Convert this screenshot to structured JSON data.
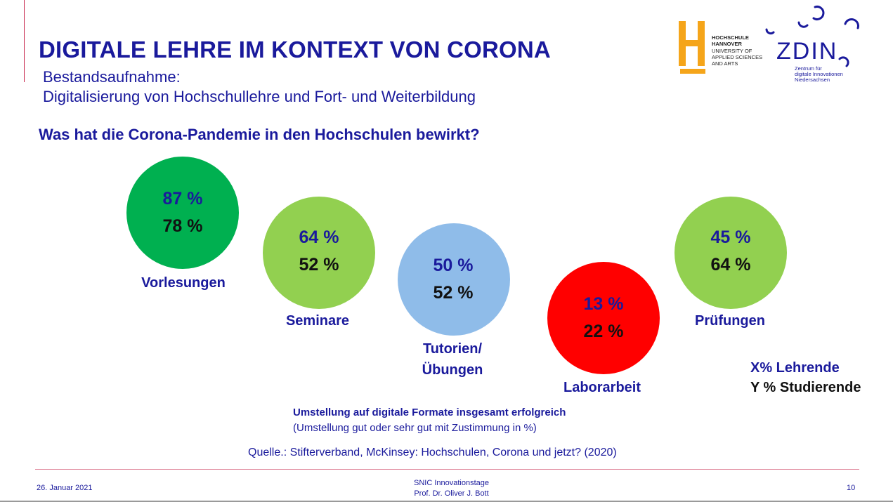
{
  "slide": {
    "title": "DIGITALE LEHRE IM KONTEXT VON CORONA",
    "subtitle_line1": "Bestandsaufnahme:",
    "subtitle_line2": "Digitalisierung von Hochschullehre und Fort- und Weiterbildung",
    "question": "Was hat die Corona-Pandemie in den Hochschulen bewirkt?"
  },
  "logos": {
    "hochschule": {
      "line1": "HOCHSCHULE",
      "line2": "HANNOVER",
      "line3": "UNIVERSITY OF",
      "line4": "APPLIED SCIENCES",
      "line5": "AND ARTS",
      "color": "#f5a51a"
    },
    "zdin": {
      "name": "ZDIN",
      "line1": "Zentrum für",
      "line2": "digitale Innovationen",
      "line3": "Niedersachsen",
      "color": "#1a1a9c"
    }
  },
  "circles": [
    {
      "category": "Vorlesungen",
      "lehrende": "87 %",
      "studierende": "78 %",
      "color": "#00b050"
    },
    {
      "category": "Seminare",
      "lehrende": "64 %",
      "studierende": "52 %",
      "color": "#92d050"
    },
    {
      "category": "Tutorien/",
      "category2": "Übungen",
      "lehrende": "50 %",
      "studierende": "52 %",
      "color": "#8fbce9"
    },
    {
      "category": "Laborarbeit",
      "lehrende": "13 %",
      "studierende": "22 %",
      "color": "#ff0000"
    },
    {
      "category": "Prüfungen",
      "lehrende": "45 %",
      "studierende": "64 %",
      "color": "#92d050"
    }
  ],
  "legend": {
    "lehrende": "X% Lehrende",
    "studierende": "Y % Studierende"
  },
  "notes": {
    "line1": "Umstellung auf digitale Formate insgesamt erfolgreich",
    "line2": "(Umstellung gut oder sehr gut mit Zustimmung in %)",
    "source": "Quelle.: Stifterverband, McKinsey: Hochschulen, Corona und jetzt? (2020)"
  },
  "footer": {
    "date": "26. Januar 2021",
    "event": "SNIC Innovationstage",
    "author": "Prof. Dr. Oliver J. Bott",
    "page": "10"
  },
  "colors": {
    "title_blue": "#1a1a9c",
    "accent_red": "#c8234a"
  }
}
